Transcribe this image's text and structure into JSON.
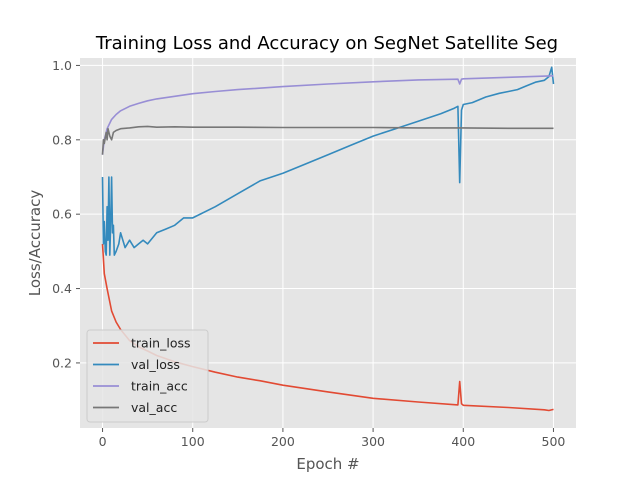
{
  "chart_data": {
    "type": "line",
    "title": "Training Loss and Accuracy on SegNet Satellite Seg",
    "xlabel": "Epoch #",
    "ylabel": "Loss/Accuracy",
    "xlim": [
      -25,
      525
    ],
    "ylim": [
      0.025,
      1.02
    ],
    "xticks": [
      0,
      100,
      200,
      300,
      400,
      500
    ],
    "yticks": [
      0.2,
      0.4,
      0.6,
      0.8,
      1.0
    ],
    "xtick_labels": [
      "0",
      "100",
      "200",
      "300",
      "400",
      "500"
    ],
    "ytick_labels": [
      "0.2",
      "0.4",
      "0.6",
      "0.8",
      "1.0"
    ],
    "grid": true,
    "legend_position": "lower-left",
    "background": "#E5E5E5",
    "series": [
      {
        "name": "train_loss",
        "color": "#E24A33",
        "x": [
          0,
          2,
          5,
          10,
          15,
          20,
          30,
          40,
          50,
          60,
          80,
          100,
          125,
          150,
          175,
          200,
          250,
          300,
          350,
          394,
          396,
          398,
          400,
          450,
          490,
          495,
          500
        ],
        "y": [
          0.52,
          0.44,
          0.4,
          0.34,
          0.31,
          0.29,
          0.26,
          0.243,
          0.232,
          0.22,
          0.203,
          0.19,
          0.175,
          0.162,
          0.152,
          0.14,
          0.122,
          0.105,
          0.095,
          0.087,
          0.15,
          0.09,
          0.086,
          0.08,
          0.074,
          0.072,
          0.075
        ]
      },
      {
        "name": "val_loss",
        "color": "#348ABD",
        "x": [
          0,
          1,
          2,
          3,
          4,
          5,
          6,
          7,
          8,
          9,
          10,
          11,
          12,
          13,
          15,
          18,
          20,
          25,
          30,
          35,
          40,
          45,
          50,
          60,
          70,
          80,
          90,
          100,
          125,
          150,
          175,
          200,
          225,
          250,
          275,
          300,
          325,
          350,
          375,
          390,
          394,
          396,
          398,
          400,
          410,
          425,
          440,
          450,
          460,
          470,
          480,
          490,
          495,
          498,
          500
        ],
        "y": [
          0.7,
          0.52,
          0.58,
          0.5,
          0.49,
          0.62,
          0.53,
          0.7,
          0.49,
          0.58,
          0.7,
          0.55,
          0.57,
          0.49,
          0.5,
          0.52,
          0.55,
          0.51,
          0.53,
          0.51,
          0.52,
          0.53,
          0.52,
          0.55,
          0.56,
          0.57,
          0.59,
          0.59,
          0.62,
          0.655,
          0.69,
          0.71,
          0.735,
          0.76,
          0.785,
          0.81,
          0.83,
          0.85,
          0.87,
          0.885,
          0.89,
          0.685,
          0.88,
          0.895,
          0.9,
          0.915,
          0.925,
          0.93,
          0.935,
          0.945,
          0.955,
          0.96,
          0.97,
          0.995,
          0.95
        ]
      },
      {
        "name": "train_acc",
        "color": "#988ED5",
        "x": [
          0,
          2,
          5,
          10,
          15,
          20,
          30,
          40,
          50,
          60,
          80,
          100,
          125,
          150,
          200,
          250,
          300,
          350,
          394,
          396,
          398,
          400,
          450,
          500
        ],
        "y": [
          0.76,
          0.8,
          0.83,
          0.855,
          0.868,
          0.878,
          0.89,
          0.898,
          0.905,
          0.91,
          0.917,
          0.924,
          0.93,
          0.935,
          0.943,
          0.95,
          0.956,
          0.961,
          0.963,
          0.95,
          0.963,
          0.964,
          0.968,
          0.972
        ]
      },
      {
        "name": "val_acc",
        "color": "#777777",
        "x": [
          0,
          1,
          2,
          4,
          5,
          6,
          8,
          10,
          12,
          15,
          20,
          30,
          40,
          50,
          60,
          80,
          100,
          150,
          200,
          250,
          300,
          350,
          400,
          450,
          500
        ],
        "y": [
          0.76,
          0.8,
          0.79,
          0.82,
          0.8,
          0.83,
          0.81,
          0.8,
          0.82,
          0.825,
          0.83,
          0.832,
          0.835,
          0.836,
          0.834,
          0.835,
          0.834,
          0.834,
          0.833,
          0.833,
          0.833,
          0.832,
          0.832,
          0.831,
          0.831
        ]
      }
    ]
  }
}
